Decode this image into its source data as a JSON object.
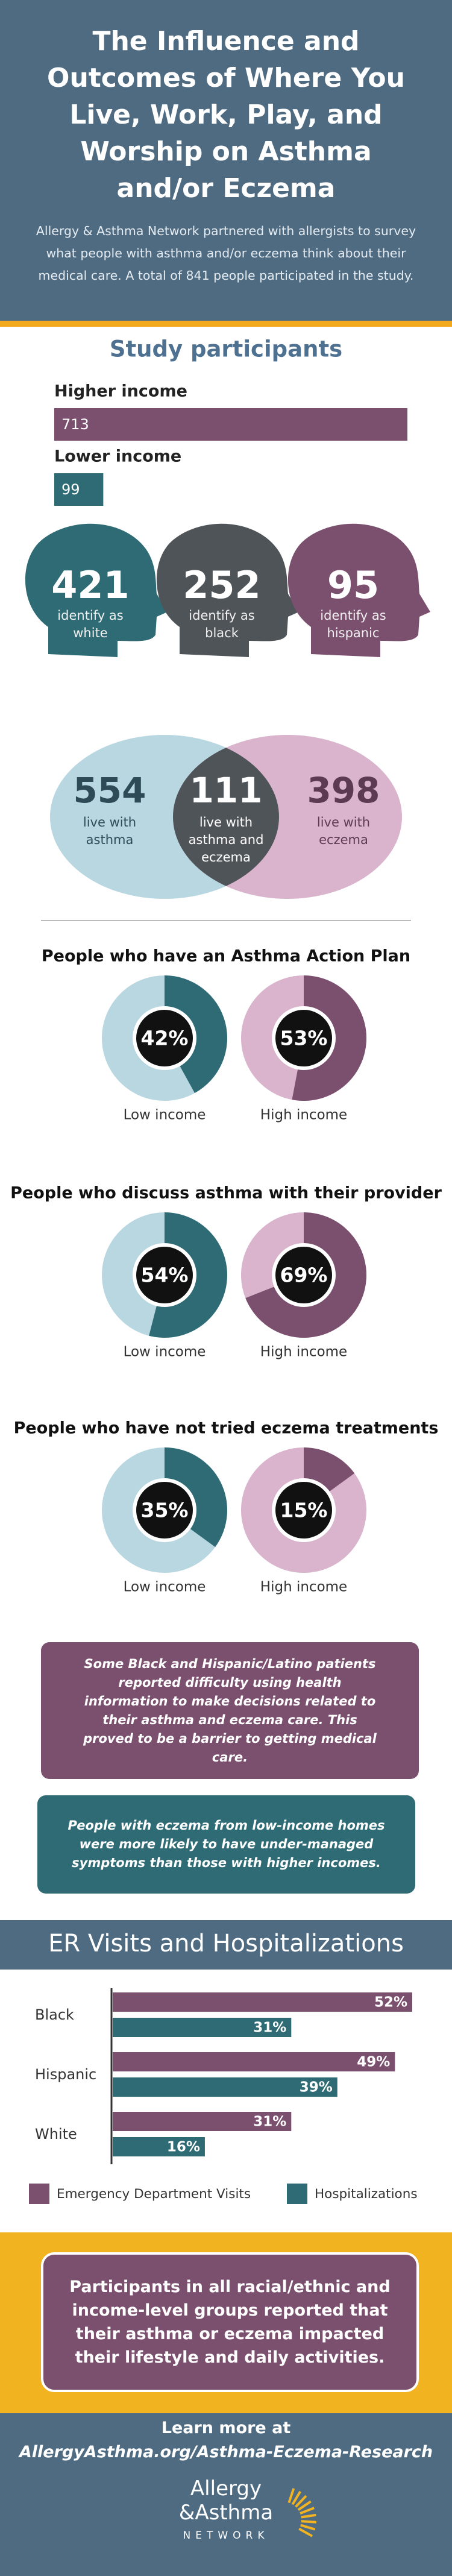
{
  "header": {
    "title": "The Influence and Outcomes of Where You Live, Work, Play, and Worship on Asthma and/or Eczema",
    "subtitle": "Allergy & Asthma Network partnered with allergists to survey what people with asthma and/or eczema think about their medical care. A total of 841 people participated in the study."
  },
  "chart_data": [
    {
      "type": "hbar",
      "title": "Study participants",
      "categories": [
        "Higher income",
        "Lower income"
      ],
      "values": [
        713,
        99
      ],
      "colors": [
        "#7b4f6e",
        "#2e6b74"
      ]
    },
    {
      "type": "heads",
      "values": [
        421,
        252,
        95
      ],
      "labels": [
        "identify as white",
        "identify as black",
        "identify as hispanic"
      ],
      "colors": [
        "#2e6b74",
        "#4f5459",
        "#7b4f6e"
      ]
    },
    {
      "type": "venn",
      "values": [
        554,
        111,
        398
      ],
      "labels": [
        "live with asthma",
        "live with asthma and eczema",
        "live with eczema"
      ],
      "colors": [
        "#b8d7e1",
        "#4f5459",
        "#d9b4cc"
      ]
    },
    {
      "type": "donut",
      "title": "People who have an Asthma Action Plan",
      "categories": [
        "Low income",
        "High income"
      ],
      "values": [
        42,
        53
      ],
      "value_labels": [
        "42%",
        "53%"
      ],
      "colors": [
        "#2e6b74",
        "#7b4f6e"
      ],
      "track_colors": [
        "#b8d7e1",
        "#d9b4cc"
      ]
    },
    {
      "type": "donut",
      "title": "People who discuss asthma with their provider",
      "categories": [
        "Low income",
        "High income"
      ],
      "values": [
        54,
        69
      ],
      "value_labels": [
        "54%",
        "69%"
      ],
      "colors": [
        "#2e6b74",
        "#7b4f6e"
      ],
      "track_colors": [
        "#b8d7e1",
        "#d9b4cc"
      ]
    },
    {
      "type": "donut",
      "title": "People who have not tried eczema treatments",
      "categories": [
        "Low income",
        "High income"
      ],
      "values": [
        35,
        15
      ],
      "value_labels": [
        "35%",
        "15%"
      ],
      "colors": [
        "#2e6b74",
        "#7b4f6e"
      ],
      "track_colors": [
        "#b8d7e1",
        "#d9b4cc"
      ]
    },
    {
      "type": "grouped-hbar",
      "title": "ER Visits and Hospitalizations",
      "categories": [
        "Black",
        "Hispanic",
        "White"
      ],
      "series": [
        {
          "name": "Emergency Department Visits",
          "color": "#7b4f6e",
          "values": [
            52,
            49,
            31
          ],
          "value_labels": [
            "52%",
            "49%",
            "31%"
          ]
        },
        {
          "name": "Hospitalizations",
          "color": "#2e6b74",
          "values": [
            31,
            39,
            16
          ],
          "value_labels": [
            "31%",
            "39%",
            "16%"
          ]
        }
      ],
      "legend": "bottom"
    }
  ],
  "callouts": [
    "Some Black and Hispanic/Latino patients reported difficulty using health information to make decisions related to their asthma and eczema care. This proved to be a barrier to getting medical care.",
    "People with eczema from low-income homes were more likely to have under-managed symptoms than those with higher incomes.",
    "Participants in all racial/ethnic and income-level groups reported that their asthma or eczema impacted their lifestyle and daily activities."
  ],
  "footer": {
    "lead": "Learn more at",
    "url": "AllergyAsthma.org/Asthma-Eczema-Research",
    "logo": [
      "Allergy",
      "&Asthma",
      "NETWORK"
    ]
  }
}
